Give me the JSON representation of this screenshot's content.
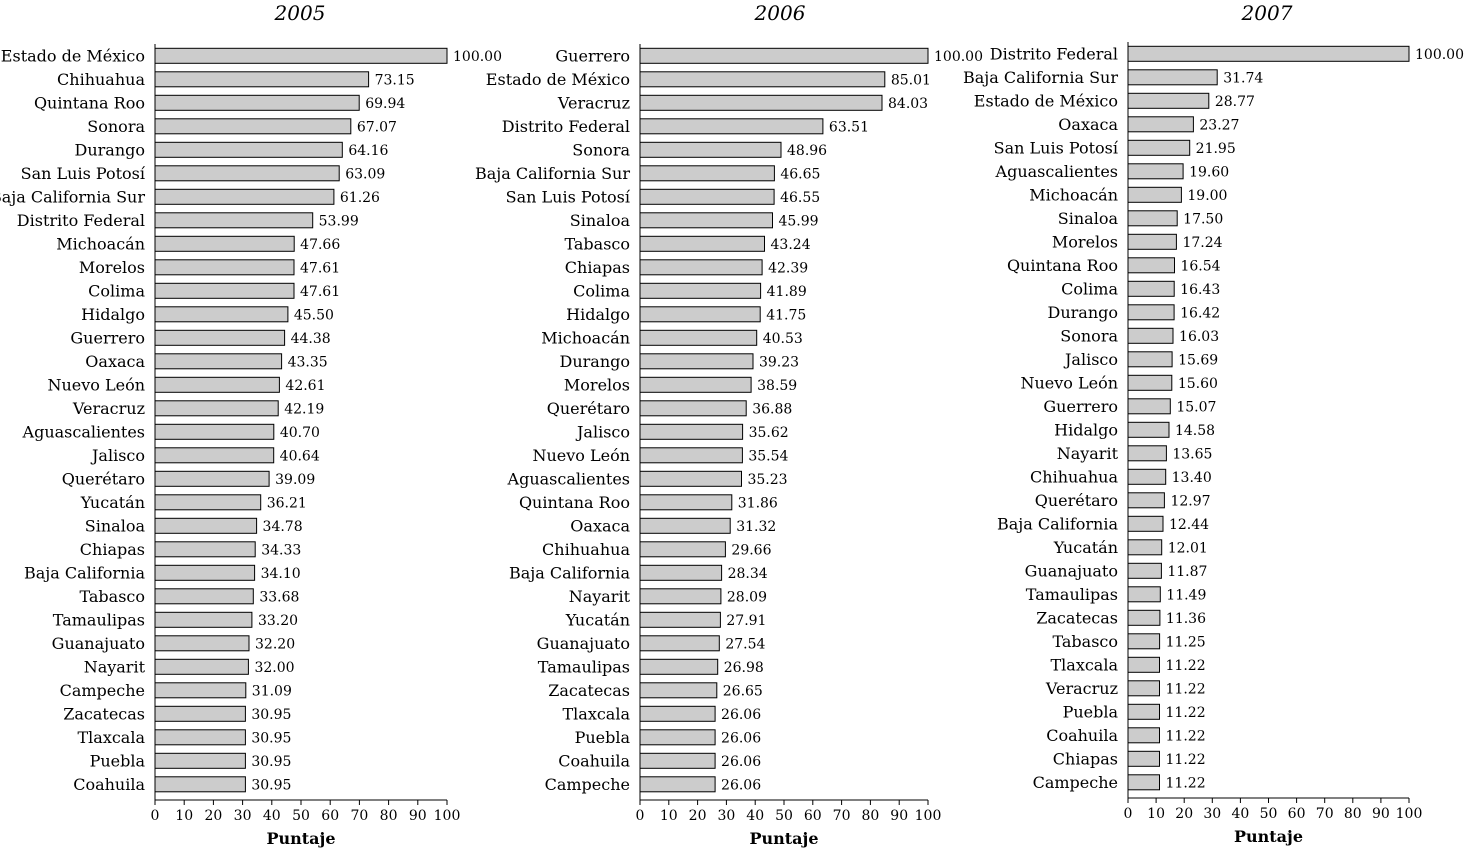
{
  "chart_data": [
    {
      "type": "bar",
      "orientation": "horizontal",
      "title": "2005",
      "xlabel": "Puntaje",
      "xlim": [
        0,
        100
      ],
      "xticks": [
        "0",
        "10",
        "20",
        "30",
        "40",
        "50",
        "60",
        "70",
        "80",
        "90",
        "100"
      ],
      "bar_color": "#cccccc",
      "categories": [
        "Estado de México",
        "Chihuahua",
        "Quintana Roo",
        "Sonora",
        "Durango",
        "San Luis Potosí",
        "Baja California Sur",
        "Distrito Federal",
        "Michoacán",
        "Morelos",
        "Colima",
        "Hidalgo",
        "Guerrero",
        "Oaxaca",
        "Nuevo León",
        "Veracruz",
        "Aguascalientes",
        "Jalisco",
        "Querétaro",
        "Yucatán",
        "Sinaloa",
        "Chiapas",
        "Baja California",
        "Tabasco",
        "Tamaulipas",
        "Guanajuato",
        "Nayarit",
        "Campeche",
        "Zacatecas",
        "Tlaxcala",
        "Puebla",
        "Coahuila"
      ],
      "values": [
        100.0,
        73.15,
        69.94,
        67.07,
        64.16,
        63.09,
        61.26,
        53.99,
        47.66,
        47.61,
        47.61,
        45.5,
        44.38,
        43.35,
        42.61,
        42.19,
        40.7,
        40.64,
        39.09,
        36.21,
        34.78,
        34.33,
        34.1,
        33.68,
        33.2,
        32.2,
        32.0,
        31.09,
        30.95,
        30.95,
        30.95,
        30.95
      ],
      "value_labels": [
        "100.00",
        "73.15",
        "69.94",
        "67.07",
        "64.16",
        "63.09",
        "61.26",
        "53.99",
        "47.66",
        "47.61",
        "47.61",
        "45.50",
        "44.38",
        "43.35",
        "42.61",
        "42.19",
        "40.70",
        "40.64",
        "39.09",
        "36.21",
        "34.78",
        "34.33",
        "34.10",
        "33.68",
        "33.20",
        "32.20",
        "32.00",
        "31.09",
        "30.95",
        "30.95",
        "30.95",
        "30.95"
      ]
    },
    {
      "type": "bar",
      "orientation": "horizontal",
      "title": "2006",
      "xlabel": "Puntaje",
      "xlim": [
        0,
        100
      ],
      "xticks": [
        "0",
        "10",
        "20",
        "30",
        "40",
        "50",
        "60",
        "70",
        "80",
        "90",
        "100"
      ],
      "bar_color": "#cccccc",
      "categories": [
        "Guerrero",
        "Estado de México",
        "Veracruz",
        "Distrito Federal",
        "Sonora",
        "Baja California Sur",
        "San Luis Potosí",
        "Sinaloa",
        "Tabasco",
        "Chiapas",
        "Colima",
        "Hidalgo",
        "Michoacán",
        "Durango",
        "Morelos",
        "Querétaro",
        "Jalisco",
        "Nuevo León",
        "Aguascalientes",
        "Quintana Roo",
        "Oaxaca",
        "Chihuahua",
        "Baja California",
        "Nayarit",
        "Yucatán",
        "Guanajuato",
        "Tamaulipas",
        "Zacatecas",
        "Tlaxcala",
        "Puebla",
        "Coahuila",
        "Campeche"
      ],
      "values": [
        100.0,
        85.01,
        84.03,
        63.51,
        48.96,
        46.65,
        46.55,
        45.99,
        43.24,
        42.39,
        41.89,
        41.75,
        40.53,
        39.23,
        38.59,
        36.88,
        35.62,
        35.54,
        35.23,
        31.86,
        31.32,
        29.66,
        28.34,
        28.09,
        27.91,
        27.54,
        26.98,
        26.65,
        26.06,
        26.06,
        26.06,
        26.06
      ],
      "value_labels": [
        "100.00",
        "85.01",
        "84.03",
        "63.51",
        "48.96",
        "46.65",
        "46.55",
        "45.99",
        "43.24",
        "42.39",
        "41.89",
        "41.75",
        "40.53",
        "39.23",
        "38.59",
        "36.88",
        "35.62",
        "35.54",
        "35.23",
        "31.86",
        "31.32",
        "29.66",
        "28.34",
        "28.09",
        "27.91",
        "27.54",
        "26.98",
        "26.65",
        "26.06",
        "26.06",
        "26.06",
        "26.06"
      ]
    },
    {
      "type": "bar",
      "orientation": "horizontal",
      "title": "2007",
      "xlabel": "Puntaje",
      "xlim": [
        0,
        100
      ],
      "xticks": [
        "0",
        "10",
        "20",
        "30",
        "40",
        "50",
        "60",
        "70",
        "80",
        "90",
        "100"
      ],
      "bar_color": "#cccccc",
      "categories": [
        "Distrito Federal",
        "Baja California Sur",
        "Estado de México",
        "Oaxaca",
        "San Luis Potosí",
        "Aguascalientes",
        "Michoacán",
        "Sinaloa",
        "Morelos",
        "Quintana Roo",
        "Colima",
        "Durango",
        "Sonora",
        "Jalisco",
        "Nuevo León",
        "Guerrero",
        "Hidalgo",
        "Nayarit",
        "Chihuahua",
        "Querétaro",
        "Baja California",
        "Yucatán",
        "Guanajuato",
        "Tamaulipas",
        "Zacatecas",
        "Tabasco",
        "Tlaxcala",
        "Veracruz",
        "Puebla",
        "Coahuila",
        "Chiapas",
        "Campeche"
      ],
      "values": [
        100.0,
        31.74,
        28.77,
        23.27,
        21.95,
        19.6,
        19.0,
        17.5,
        17.24,
        16.54,
        16.43,
        16.42,
        16.03,
        15.69,
        15.6,
        15.07,
        14.58,
        13.65,
        13.4,
        12.97,
        12.44,
        12.01,
        11.87,
        11.49,
        11.36,
        11.25,
        11.22,
        11.22,
        11.22,
        11.22,
        11.22,
        11.22
      ],
      "value_labels": [
        "100.00",
        "31.74",
        "28.77",
        "23.27",
        "21.95",
        "19.60",
        "19.00",
        "17.50",
        "17.24",
        "16.54",
        "16.43",
        "16.42",
        "16.03",
        "15.69",
        "15.60",
        "15.07",
        "14.58",
        "13.65",
        "13.40",
        "12.97",
        "12.44",
        "12.01",
        "11.87",
        "11.49",
        "11.36",
        "11.25",
        "11.22",
        "11.22",
        "11.22",
        "11.22",
        "11.22",
        "11.22"
      ]
    }
  ]
}
